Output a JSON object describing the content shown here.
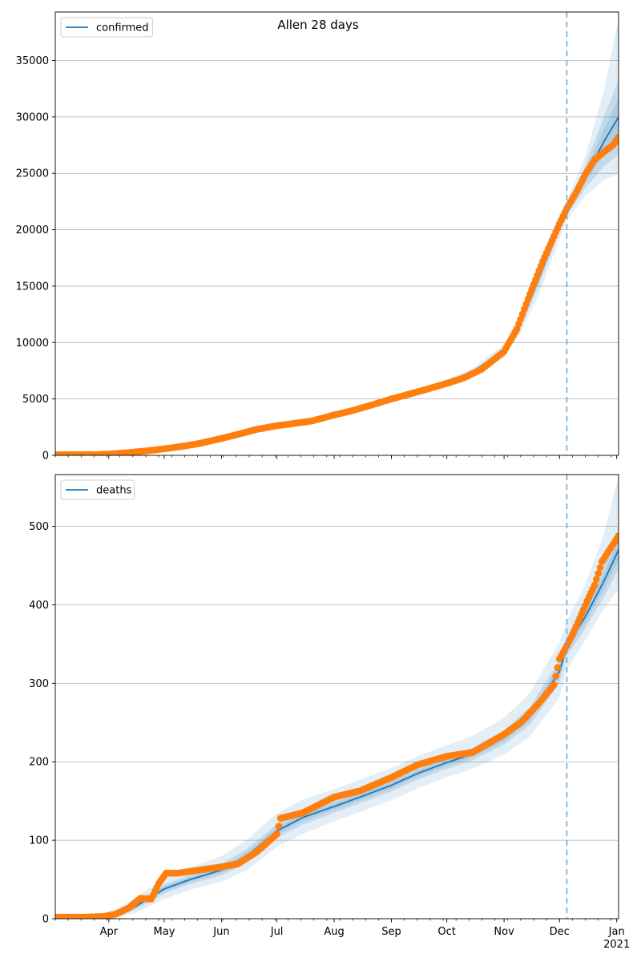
{
  "title": "Allen 28 days",
  "colors": {
    "model": "#1f77b4",
    "observed": "#ff7f0e",
    "band": "#1f77b4",
    "grid": "#b0b0b0",
    "forecast_line": "#6fa8d6"
  },
  "chart_data": [
    {
      "type": "line",
      "name": "confirmed",
      "legend": "confirmed",
      "legend_position": "top-left",
      "grid": "horizontal",
      "x_range": [
        "2020-03-03",
        "2021-01-02"
      ],
      "ylim": [
        0,
        39300
      ],
      "yticks": [
        0,
        5000,
        10000,
        15000,
        20000,
        25000,
        30000,
        35000
      ],
      "forecast_start": "2020-12-05",
      "model": {
        "x": [
          "2020-03-03",
          "2020-03-20",
          "2020-04-01",
          "2020-04-15",
          "2020-05-01",
          "2020-05-15",
          "2020-06-01",
          "2020-06-15",
          "2020-07-01",
          "2020-07-15",
          "2020-08-01",
          "2020-08-15",
          "2020-09-01",
          "2020-09-15",
          "2020-10-01",
          "2020-10-15",
          "2020-11-01",
          "2020-11-10",
          "2020-11-20",
          "2020-12-01",
          "2020-12-05",
          "2020-12-15",
          "2020-12-25",
          "2021-01-02"
        ],
        "values": [
          0,
          30,
          100,
          300,
          600,
          950,
          1500,
          2200,
          2650,
          3000,
          3550,
          4150,
          5000,
          5600,
          6400,
          7400,
          9300,
          11800,
          15800,
          20300,
          21700,
          24700,
          27800,
          30000
        ],
        "band_inner": [
          0,
          25,
          85,
          260,
          540,
          880,
          1420,
          2100,
          2550,
          2900,
          3450,
          4050,
          4880,
          5480,
          6260,
          7250,
          9050,
          11350,
          15100,
          19800,
          21300,
          23700,
          25600,
          26700
        ],
        "band_inner_hi": [
          0,
          35,
          115,
          340,
          660,
          1020,
          1580,
          2300,
          2750,
          3100,
          3650,
          4250,
          5120,
          5720,
          6540,
          7550,
          9550,
          12250,
          16500,
          20800,
          22100,
          25700,
          30000,
          33300
        ],
        "band_outer_lo": [
          0,
          20,
          70,
          220,
          480,
          800,
          1330,
          1990,
          2440,
          2780,
          3330,
          3930,
          4740,
          5330,
          6100,
          7080,
          8750,
          10850,
          14350,
          19200,
          20850,
          23000,
          24400,
          25000
        ],
        "band_outer_hi": [
          0,
          40,
          130,
          380,
          720,
          1100,
          1670,
          2410,
          2860,
          3220,
          3770,
          4370,
          5260,
          5870,
          6700,
          7720,
          9850,
          12750,
          17250,
          21400,
          22550,
          26500,
          32300,
          38800
        ]
      },
      "observed": {
        "x": [
          "2020-03-03",
          "2020-03-15",
          "2020-03-25",
          "2020-04-01",
          "2020-04-10",
          "2020-04-20",
          "2020-05-01",
          "2020-05-10",
          "2020-05-20",
          "2020-06-01",
          "2020-06-10",
          "2020-06-20",
          "2020-07-01",
          "2020-07-10",
          "2020-07-20",
          "2020-08-01",
          "2020-08-10",
          "2020-08-20",
          "2020-09-01",
          "2020-09-10",
          "2020-09-20",
          "2020-10-01",
          "2020-10-10",
          "2020-10-20",
          "2020-11-01",
          "2020-11-08",
          "2020-11-15",
          "2020-11-22",
          "2020-12-01",
          "2020-12-05",
          "2020-12-10",
          "2020-12-15",
          "2020-12-20",
          "2020-12-25",
          "2020-12-30",
          "2021-01-02"
        ],
        "values": [
          50,
          60,
          70,
          110,
          220,
          370,
          580,
          780,
          1050,
          1500,
          1870,
          2300,
          2630,
          2820,
          3050,
          3580,
          3930,
          4400,
          5000,
          5400,
          5850,
          6380,
          6850,
          7650,
          9200,
          11200,
          14300,
          17200,
          20500,
          21900,
          23300,
          24900,
          26200,
          26900,
          27500,
          28200
        ]
      }
    },
    {
      "type": "line",
      "name": "deaths",
      "legend": "deaths",
      "legend_position": "top-left",
      "grid": "horizontal",
      "x_range": [
        "2020-03-03",
        "2021-01-02"
      ],
      "ylim": [
        0,
        566
      ],
      "yticks": [
        0,
        100,
        200,
        300,
        400,
        500
      ],
      "forecast_start": "2020-12-05",
      "model": {
        "x": [
          "2020-03-03",
          "2020-03-25",
          "2020-04-05",
          "2020-04-15",
          "2020-05-01",
          "2020-05-15",
          "2020-06-01",
          "2020-06-15",
          "2020-07-01",
          "2020-07-15",
          "2020-08-01",
          "2020-08-15",
          "2020-09-01",
          "2020-09-15",
          "2020-10-01",
          "2020-10-15",
          "2020-11-01",
          "2020-11-15",
          "2020-12-01",
          "2020-12-05",
          "2020-12-15",
          "2020-12-25",
          "2021-01-02"
        ],
        "values": [
          0,
          2,
          6,
          15,
          38,
          50,
          62,
          80,
          112,
          129,
          143,
          155,
          170,
          185,
          199,
          210,
          231,
          258,
          315,
          348,
          385,
          430,
          470
        ],
        "band_inner_lo": [
          0,
          1,
          4,
          11,
          32,
          44,
          55,
          72,
          103,
          120,
          135,
          147,
          162,
          177,
          191,
          202,
          222,
          247,
          300,
          335,
          370,
          410,
          445
        ],
        "band_inner_hi": [
          0,
          3,
          9,
          20,
          44,
          56,
          70,
          89,
          121,
          138,
          151,
          163,
          178,
          193,
          207,
          218,
          240,
          270,
          330,
          360,
          400,
          450,
          495
        ],
        "band_outer_lo": [
          0,
          0,
          2,
          7,
          25,
          37,
          47,
          62,
          92,
          108,
          124,
          136,
          151,
          166,
          180,
          191,
          209,
          232,
          282,
          318,
          355,
          395,
          420
        ],
        "band_outer_hi": [
          0,
          5,
          12,
          26,
          52,
          65,
          80,
          101,
          134,
          152,
          165,
          177,
          192,
          207,
          221,
          233,
          256,
          288,
          352,
          380,
          425,
          490,
          565
        ]
      },
      "observed": {
        "x": [
          "2020-03-03",
          "2020-03-20",
          "2020-03-30",
          "2020-04-05",
          "2020-04-12",
          "2020-04-18",
          "2020-04-24",
          "2020-04-28",
          "2020-05-02",
          "2020-05-08",
          "2020-05-20",
          "2020-06-01",
          "2020-06-10",
          "2020-06-20",
          "2020-07-01",
          "2020-07-03",
          "2020-07-15",
          "2020-08-01",
          "2020-08-15",
          "2020-09-01",
          "2020-09-15",
          "2020-10-01",
          "2020-10-15",
          "2020-11-01",
          "2020-11-10",
          "2020-11-20",
          "2020-11-28",
          "2020-12-01",
          "2020-12-05",
          "2020-12-08",
          "2020-12-12",
          "2020-12-16",
          "2020-12-20",
          "2020-12-24",
          "2020-12-28",
          "2021-01-02"
        ],
        "values": [
          2,
          2,
          3,
          6,
          14,
          26,
          25,
          45,
          58,
          58,
          62,
          66,
          70,
          85,
          108,
          128,
          135,
          155,
          163,
          180,
          196,
          207,
          212,
          235,
          250,
          275,
          298,
          331,
          348,
          362,
          383,
          405,
          425,
          455,
          470,
          488
        ]
      }
    }
  ],
  "x_month_labels": [
    {
      "date": "2020-04-01",
      "label": "Apr"
    },
    {
      "date": "2020-05-01",
      "label": "May"
    },
    {
      "date": "2020-06-01",
      "label": "Jun"
    },
    {
      "date": "2020-07-01",
      "label": "Jul"
    },
    {
      "date": "2020-08-01",
      "label": "Aug"
    },
    {
      "date": "2020-09-01",
      "label": "Sep"
    },
    {
      "date": "2020-10-01",
      "label": "Oct"
    },
    {
      "date": "2020-11-01",
      "label": "Nov"
    },
    {
      "date": "2020-12-01",
      "label": "Dec"
    },
    {
      "date": "2021-01-01",
      "label": "Jan"
    }
  ],
  "x_year_label": "2021"
}
